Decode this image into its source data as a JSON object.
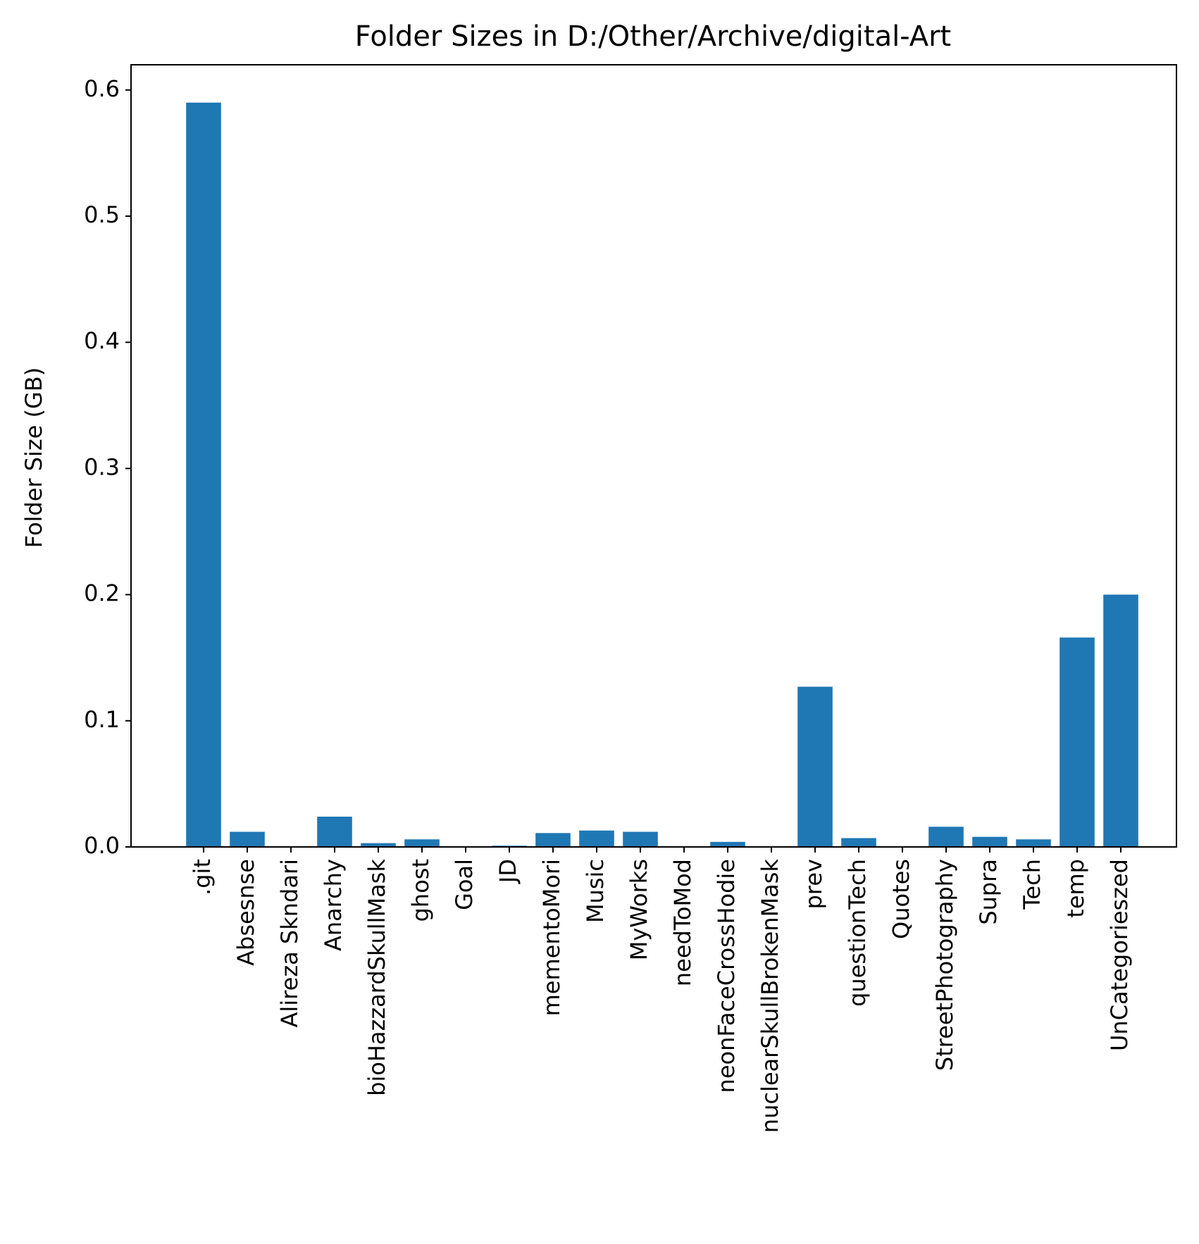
{
  "chart_data": {
    "type": "bar",
    "title": "Folder Sizes in D:/Other/Archive/digital-Art",
    "xlabel": "",
    "ylabel": "Folder Size (GB)",
    "ylim": [
      0,
      0.62
    ],
    "yticks": [
      "0.0",
      "0.1",
      "0.2",
      "0.3",
      "0.4",
      "0.5",
      "0.6"
    ],
    "grid": false,
    "bar_color": "#1f77b4",
    "categories": [
      ".git",
      "Absesnse",
      "Alireza Skndari",
      "Anarchy",
      "bioHazzardSkullMask",
      "ghost",
      "Goal",
      "JD",
      "mementoMori",
      "Music",
      "MyWorks",
      "needToMod",
      "neonFaceCrossHodie",
      "nuclearSkullBrokenMask",
      "prev",
      "questionTech",
      "Quotes",
      "StreetPhotography",
      "Supra",
      "Tech",
      "temp",
      "UnCategorieszed"
    ],
    "values": [
      0.59,
      0.012,
      0.0,
      0.024,
      0.003,
      0.006,
      0.0,
      0.001,
      0.011,
      0.013,
      0.012,
      0.0,
      0.004,
      0.0,
      0.127,
      0.007,
      0.0,
      0.016,
      0.008,
      0.006,
      0.166,
      0.2
    ]
  }
}
